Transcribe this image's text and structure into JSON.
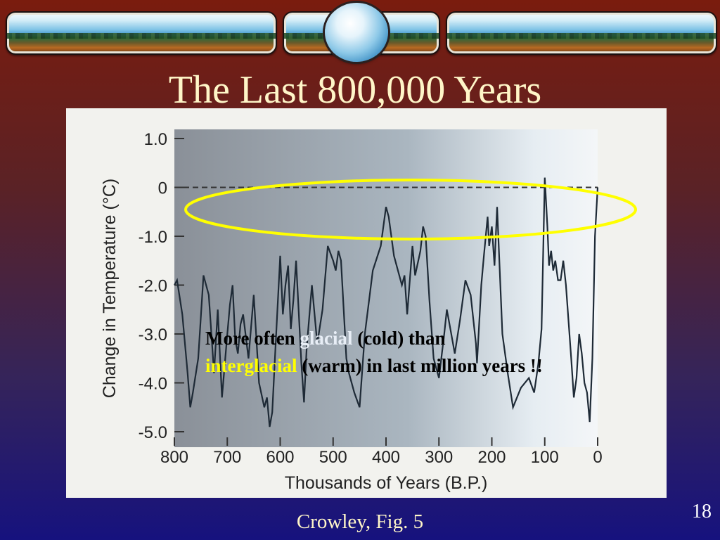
{
  "slide": {
    "title": "The Last 800,000 Years",
    "caption": "Crowley, Fig. 5",
    "slide_number": "18",
    "annotation": {
      "part1": "More often ",
      "glacial": "glacial",
      "part2": " (cold) than",
      "interglacial": "interglacial",
      "part3": " (warm) in last million years !!"
    }
  },
  "colors": {
    "title_text": "#fff6c8",
    "highlight_ellipse": "#ffff00",
    "glacial_word": "#e8eef6",
    "interglacial_word": "#ffff00"
  },
  "chart_data": {
    "type": "line",
    "xlabel": "Thousands of Years (B.P.)",
    "ylabel": "Change in Temperature (°C)",
    "xlim": [
      800,
      0
    ],
    "ylim": [
      -5.0,
      1.0
    ],
    "x_ticks": [
      "800",
      "700",
      "600",
      "500",
      "400",
      "300",
      "200",
      "100",
      "0"
    ],
    "y_ticks": [
      "1.0",
      "0",
      "-1.0",
      "-2.0",
      "-3.0",
      "-4.0",
      "-5.0"
    ],
    "reference_line": 0,
    "grid": false,
    "series": [
      {
        "x": [
          800,
          795,
          785,
          775,
          770,
          765,
          755,
          745,
          735,
          725,
          718,
          710,
          700,
          695,
          690,
          685,
          680,
          675,
          670,
          660,
          650,
          640,
          630,
          625,
          620,
          615,
          610,
          600,
          595,
          590,
          585,
          580,
          575,
          570,
          560,
          555,
          550,
          540,
          530,
          520,
          510,
          500,
          495,
          490,
          485,
          475,
          470,
          460,
          450,
          440,
          425,
          410,
          400,
          395,
          385,
          370,
          365,
          360,
          350,
          345,
          335,
          330,
          325,
          318,
          310,
          300,
          290,
          285,
          280,
          270,
          260,
          250,
          240,
          230,
          228,
          220,
          215,
          208,
          205,
          200,
          195,
          190,
          180,
          170,
          160,
          145,
          130,
          120,
          112,
          106,
          100,
          95,
          92,
          88,
          84,
          80,
          75,
          70,
          65,
          60,
          50,
          45,
          40,
          35,
          30,
          25,
          20,
          15,
          10,
          5,
          0
        ],
        "values": [
          -2.0,
          -1.9,
          -2.6,
          -3.8,
          -4.5,
          -4.2,
          -3.5,
          -1.8,
          -2.2,
          -3.8,
          -2.5,
          -4.3,
          -3.0,
          -2.4,
          -2.0,
          -3.1,
          -3.4,
          -2.8,
          -2.6,
          -3.5,
          -2.2,
          -4.0,
          -4.5,
          -4.3,
          -4.9,
          -4.6,
          -3.5,
          -1.4,
          -2.6,
          -2.0,
          -1.6,
          -2.9,
          -2.3,
          -1.5,
          -3.6,
          -4.4,
          -3.3,
          -2.0,
          -3.2,
          -2.5,
          -1.2,
          -1.5,
          -1.7,
          -1.3,
          -1.5,
          -3.5,
          -3.8,
          -4.2,
          -4.5,
          -3.0,
          -1.7,
          -1.2,
          -0.4,
          -0.6,
          -1.4,
          -2.0,
          -1.8,
          -2.6,
          -1.2,
          -1.8,
          -1.3,
          -0.8,
          -1.0,
          -2.3,
          -3.5,
          -3.9,
          -3.0,
          -2.5,
          -2.8,
          -3.4,
          -2.7,
          -1.9,
          -2.2,
          -3.2,
          -3.6,
          -2.0,
          -1.4,
          -0.6,
          -1.2,
          -0.8,
          -1.6,
          -0.4,
          -3.0,
          -3.8,
          -4.5,
          -4.1,
          -3.9,
          -4.2,
          -3.6,
          -2.9,
          0.2,
          -0.8,
          -1.6,
          -1.3,
          -1.7,
          -1.5,
          -1.9,
          -1.9,
          -1.5,
          -2.0,
          -3.5,
          -4.3,
          -3.9,
          -3.0,
          -3.4,
          -4.0,
          -4.2,
          -4.8,
          -3.5,
          -1.0,
          0.0
        ]
      }
    ]
  }
}
